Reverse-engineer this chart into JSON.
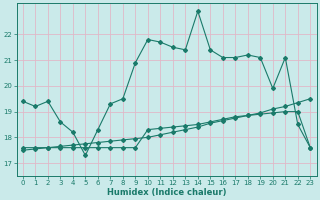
{
  "xlabel": "Humidex (Indice chaleur)",
  "bg_color": "#caeaea",
  "grid_color": "#e0b8c8",
  "line_color": "#1a7a6a",
  "xlim": [
    -0.5,
    23.5
  ],
  "ylim": [
    16.5,
    23.2
  ],
  "xticks": [
    0,
    1,
    2,
    3,
    4,
    5,
    6,
    7,
    8,
    9,
    10,
    11,
    12,
    13,
    14,
    15,
    16,
    17,
    18,
    19,
    20,
    21,
    22,
    23
  ],
  "yticks": [
    17,
    18,
    19,
    20,
    21,
    22
  ],
  "line1_x": [
    0,
    1,
    2,
    3,
    4,
    5,
    6,
    7,
    8,
    9,
    10,
    11,
    12,
    13,
    14,
    15,
    16,
    17,
    18,
    19,
    20,
    21,
    22,
    23
  ],
  "line1_y": [
    19.4,
    19.2,
    19.4,
    18.6,
    18.2,
    17.3,
    18.3,
    19.3,
    19.5,
    20.9,
    21.8,
    21.7,
    21.5,
    21.4,
    22.9,
    21.4,
    21.1,
    21.1,
    21.2,
    21.1,
    19.9,
    21.1,
    18.5,
    17.6
  ],
  "line2_x": [
    0,
    1,
    2,
    3,
    4,
    5,
    6,
    7,
    8,
    9,
    10,
    11,
    12,
    13,
    14,
    15,
    16,
    17,
    18,
    19,
    20,
    21,
    22,
    23
  ],
  "line2_y": [
    17.5,
    17.55,
    17.6,
    17.65,
    17.7,
    17.75,
    17.8,
    17.85,
    17.9,
    17.95,
    18.0,
    18.1,
    18.2,
    18.3,
    18.4,
    18.55,
    18.65,
    18.75,
    18.85,
    18.95,
    19.1,
    19.2,
    19.35,
    19.5
  ],
  "line3_x": [
    0,
    1,
    2,
    3,
    4,
    5,
    6,
    7,
    8,
    9,
    10,
    11,
    12,
    13,
    14,
    15,
    16,
    17,
    18,
    19,
    20,
    21,
    22,
    23
  ],
  "line3_y": [
    17.6,
    17.6,
    17.6,
    17.6,
    17.6,
    17.6,
    17.6,
    17.6,
    17.6,
    17.6,
    18.3,
    18.35,
    18.4,
    18.45,
    18.5,
    18.6,
    18.7,
    18.8,
    18.85,
    18.9,
    18.95,
    19.0,
    19.0,
    17.6
  ],
  "marker": "D",
  "markersize": 2.0,
  "linewidth": 0.8,
  "tick_fontsize": 5.0,
  "xlabel_fontsize": 6.0
}
